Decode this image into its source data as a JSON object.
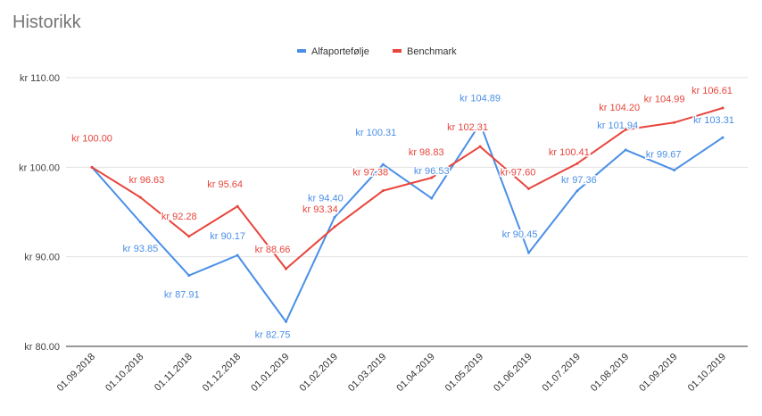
{
  "chart_data": {
    "type": "line",
    "title": "Historikk",
    "categories": [
      "01.09.2018",
      "01.10.2018",
      "01.11.2018",
      "01.12.2018",
      "01.01.2019",
      "01.02.2019",
      "01.03.2019",
      "01.04.2019",
      "01.05.2019",
      "01.06.2019",
      "01.07.2019",
      "01.08.2019",
      "01.09.2019",
      "01.10.2019"
    ],
    "series": [
      {
        "name": "Alfaportefølje",
        "color": "#4a8fe7",
        "values": [
          100.0,
          93.85,
          87.91,
          90.17,
          82.75,
          94.4,
          100.31,
          96.53,
          104.89,
          90.45,
          97.36,
          101.94,
          99.67,
          103.31
        ],
        "labels": [
          "",
          "kr  93.85",
          "kr  87.91",
          "kr  90.17",
          "kr  82.75",
          "kr  94.40",
          "kr  100.31",
          "kr  96.53",
          "kr  104.89",
          "kr  90.45",
          "kr  97.36",
          "kr  101.94",
          "kr  99.67",
          "kr  103.31"
        ]
      },
      {
        "name": "Benchmark",
        "color": "#e8453c",
        "values": [
          100.0,
          96.63,
          92.28,
          95.64,
          88.66,
          93.34,
          97.38,
          98.83,
          102.31,
          97.6,
          100.41,
          104.2,
          104.99,
          106.61
        ],
        "labels": [
          "kr  100.00",
          "kr  96.63",
          "kr  92.28",
          "kr  95.64",
          "kr  88.66",
          "kr  93.34",
          "kr  97.38",
          "kr  98.83",
          "kr  102.31",
          "kr  97.60",
          "kr  100.41",
          "kr  104.20",
          "kr  104.99",
          "kr  106.61"
        ]
      }
    ],
    "yticks": [
      80,
      90,
      100,
      110
    ],
    "ytick_labels": [
      "kr  80.00",
      "kr  90.00",
      "kr  100.00",
      "kr  110.00"
    ],
    "ylim": [
      80,
      110
    ],
    "grid": true,
    "legend_position": "top"
  }
}
